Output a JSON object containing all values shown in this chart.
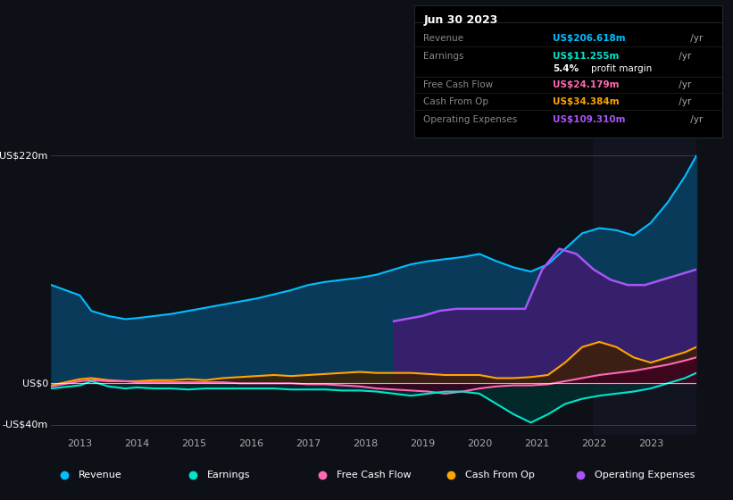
{
  "background_color": "#0d1117",
  "plot_bg_color": "#0d1117",
  "title_box": {
    "date": "Jun 30 2023",
    "rows": [
      {
        "label": "Revenue",
        "value": "US$206.618m",
        "value_color": "#00bfff",
        "suffix": " /yr"
      },
      {
        "label": "Earnings",
        "value": "US$11.255m",
        "value_color": "#00e5cc",
        "suffix": " /yr"
      },
      {
        "label": "",
        "value": "5.4% profit margin",
        "value_color": "#ffffff",
        "suffix": ""
      },
      {
        "label": "Free Cash Flow",
        "value": "US$24.179m",
        "value_color": "#ff69b4",
        "suffix": " /yr"
      },
      {
        "label": "Cash From Op",
        "value": "US$34.384m",
        "value_color": "#ffa500",
        "suffix": " /yr"
      },
      {
        "label": "Operating Expenses",
        "value": "US$109.310m",
        "value_color": "#a855f7",
        "suffix": " /yr"
      }
    ]
  },
  "ylabel_top": "US$220m",
  "ylabel_zero": "US$0",
  "ylabel_neg": "-US$40m",
  "ylim": [
    -50,
    240
  ],
  "xlim": [
    2012.5,
    2023.8
  ],
  "yticks": [
    -40,
    0,
    220
  ],
  "xticks": [
    2013,
    2014,
    2015,
    2016,
    2017,
    2018,
    2019,
    2020,
    2021,
    2022,
    2023
  ],
  "revenue": {
    "x": [
      2012.5,
      2013.0,
      2013.2,
      2013.5,
      2013.8,
      2014.0,
      2014.3,
      2014.6,
      2014.9,
      2015.2,
      2015.5,
      2015.8,
      2016.1,
      2016.4,
      2016.7,
      2017.0,
      2017.3,
      2017.6,
      2017.9,
      2018.2,
      2018.5,
      2018.8,
      2019.1,
      2019.4,
      2019.7,
      2020.0,
      2020.3,
      2020.6,
      2020.9,
      2021.2,
      2021.5,
      2021.8,
      2022.1,
      2022.4,
      2022.7,
      2023.0,
      2023.3,
      2023.6,
      2023.8
    ],
    "y": [
      95,
      85,
      70,
      65,
      62,
      63,
      65,
      67,
      70,
      73,
      76,
      79,
      82,
      86,
      90,
      95,
      98,
      100,
      102,
      105,
      110,
      115,
      118,
      120,
      122,
      125,
      118,
      112,
      108,
      115,
      130,
      145,
      150,
      148,
      143,
      155,
      175,
      200,
      220
    ],
    "color": "#00bfff",
    "fill_color": "#0a3a5a",
    "lw": 1.5
  },
  "earnings": {
    "x": [
      2012.5,
      2013.0,
      2013.2,
      2013.5,
      2013.8,
      2014.0,
      2014.3,
      2014.6,
      2014.9,
      2015.2,
      2015.5,
      2015.8,
      2016.1,
      2016.4,
      2016.7,
      2017.0,
      2017.3,
      2017.6,
      2017.9,
      2018.2,
      2018.5,
      2018.8,
      2019.1,
      2019.4,
      2019.7,
      2020.0,
      2020.3,
      2020.6,
      2020.9,
      2021.2,
      2021.5,
      2021.8,
      2022.1,
      2022.4,
      2022.7,
      2023.0,
      2023.3,
      2023.6,
      2023.8
    ],
    "y": [
      -5,
      -2,
      2,
      -3,
      -5,
      -4,
      -5,
      -5,
      -6,
      -5,
      -5,
      -5,
      -5,
      -5,
      -6,
      -6,
      -6,
      -7,
      -7,
      -8,
      -10,
      -12,
      -10,
      -8,
      -8,
      -10,
      -20,
      -30,
      -38,
      -30,
      -20,
      -15,
      -12,
      -10,
      -8,
      -5,
      0,
      5,
      10
    ],
    "color": "#00e5cc",
    "fill_color": "#003333",
    "lw": 1.5
  },
  "free_cash_flow": {
    "x": [
      2012.5,
      2013.0,
      2013.2,
      2013.5,
      2013.8,
      2014.0,
      2014.3,
      2014.6,
      2014.9,
      2015.2,
      2015.5,
      2015.8,
      2016.1,
      2016.4,
      2016.7,
      2017.0,
      2017.3,
      2017.6,
      2017.9,
      2018.2,
      2018.5,
      2018.8,
      2019.1,
      2019.4,
      2019.7,
      2020.0,
      2020.3,
      2020.6,
      2020.9,
      2021.2,
      2021.5,
      2021.8,
      2022.1,
      2022.4,
      2022.7,
      2023.0,
      2023.3,
      2023.6,
      2023.8
    ],
    "y": [
      -3,
      2,
      3,
      2,
      2,
      1,
      1,
      1,
      1,
      1,
      1,
      0,
      0,
      0,
      0,
      -1,
      -1,
      -2,
      -3,
      -5,
      -6,
      -7,
      -8,
      -10,
      -8,
      -5,
      -3,
      -2,
      -2,
      -1,
      2,
      5,
      8,
      10,
      12,
      15,
      18,
      22,
      25
    ],
    "color": "#ff69b4",
    "fill_color": "#3d0020",
    "lw": 1.5
  },
  "cash_from_op": {
    "x": [
      2012.5,
      2013.0,
      2013.2,
      2013.5,
      2013.8,
      2014.0,
      2014.3,
      2014.6,
      2014.9,
      2015.2,
      2015.5,
      2015.8,
      2016.1,
      2016.4,
      2016.7,
      2017.0,
      2017.3,
      2017.6,
      2017.9,
      2018.2,
      2018.5,
      2018.8,
      2019.1,
      2019.4,
      2019.7,
      2020.0,
      2020.3,
      2020.6,
      2020.9,
      2021.2,
      2021.5,
      2021.8,
      2022.1,
      2022.4,
      2022.7,
      2023.0,
      2023.3,
      2023.6,
      2023.8
    ],
    "y": [
      -2,
      4,
      5,
      3,
      2,
      2,
      3,
      3,
      4,
      3,
      5,
      6,
      7,
      8,
      7,
      8,
      9,
      10,
      11,
      10,
      10,
      10,
      9,
      8,
      8,
      8,
      5,
      5,
      6,
      8,
      20,
      35,
      40,
      35,
      25,
      20,
      25,
      30,
      35
    ],
    "color": "#ffa500",
    "fill_color": "#3d2000",
    "lw": 1.5
  },
  "operating_expenses": {
    "x": [
      2018.5,
      2018.7,
      2019.0,
      2019.3,
      2019.6,
      2019.9,
      2020.2,
      2020.5,
      2020.8,
      2021.1,
      2021.4,
      2021.7,
      2022.0,
      2022.3,
      2022.6,
      2022.9,
      2023.2,
      2023.5,
      2023.8
    ],
    "y": [
      60,
      62,
      65,
      70,
      72,
      72,
      72,
      72,
      72,
      110,
      130,
      125,
      110,
      100,
      95,
      95,
      100,
      105,
      110
    ],
    "color": "#a855f7",
    "fill_color": "#3b1c6e",
    "lw": 1.8
  },
  "shaded_region": {
    "x_start": 2022.0,
    "x_end": 2023.8,
    "color": "#1a1a2e",
    "alpha": 0.4
  },
  "legend": [
    {
      "label": "Revenue",
      "color": "#00bfff"
    },
    {
      "label": "Earnings",
      "color": "#00e5cc"
    },
    {
      "label": "Free Cash Flow",
      "color": "#ff69b4"
    },
    {
      "label": "Cash From Op",
      "color": "#ffa500"
    },
    {
      "label": "Operating Expenses",
      "color": "#a855f7"
    }
  ]
}
